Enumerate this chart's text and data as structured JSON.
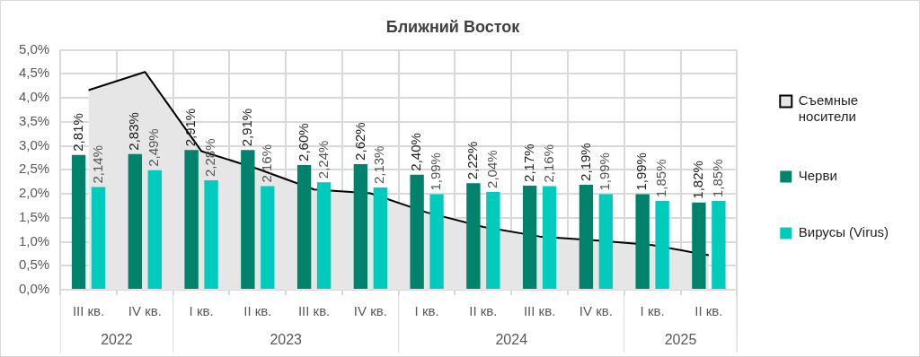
{
  "chart_data": {
    "type": "bar",
    "title": "Ближний Восток",
    "categories": [
      "III кв.",
      "IV кв.",
      "I кв.",
      "II кв.",
      "III кв.",
      "IV кв.",
      "I кв.",
      "II кв.",
      "III кв.",
      "IV кв.",
      "I кв.",
      "II кв."
    ],
    "annotations": [
      "2022",
      "2023",
      "2024",
      "2025"
    ],
    "series": [
      {
        "name": "Съемные носители",
        "type": "area",
        "color": "#e6e6e6",
        "values": [
          4.16,
          4.54,
          2.89,
          2.52,
          2.09,
          2.01,
          1.61,
          1.31,
          1.11,
          1.03,
          0.93,
          0.72
        ]
      },
      {
        "name": "Черви",
        "color": "#00826c",
        "values": [
          2.81,
          2.83,
          2.91,
          2.91,
          2.6,
          2.62,
          2.4,
          2.22,
          2.17,
          2.19,
          1.99,
          1.82
        ],
        "value_labels": [
          "2,81%",
          "2,83%",
          "2,91%",
          "2,91%",
          "2,60%",
          "2,62%",
          "2,40%",
          "2,22%",
          "2,17%",
          "2,19%",
          "1,99%",
          "1,82%"
        ]
      },
      {
        "name": "Вирусы (Virus)",
        "color": "#00cbbd",
        "values": [
          2.14,
          2.49,
          2.28,
          2.16,
          2.24,
          2.13,
          1.99,
          2.04,
          2.16,
          1.99,
          1.85,
          1.85
        ],
        "value_labels": [
          "2,14%",
          "2,49%",
          "2,28%",
          "2,16%",
          "2,24%",
          "2,13%",
          "1,99%",
          "2,04%",
          "2,16%",
          "1,99%",
          "1,85%",
          "1,85%"
        ]
      }
    ],
    "ylim": [
      0,
      5
    ],
    "yticks": [
      {
        "value": 0,
        "label": "0,0%"
      },
      {
        "value": 0.5,
        "label": "0,5%"
      },
      {
        "value": 1,
        "label": "1,0%"
      },
      {
        "value": 1.5,
        "label": "1,5%"
      },
      {
        "value": 2,
        "label": "2,0%"
      },
      {
        "value": 2.5,
        "label": "2,5%"
      },
      {
        "value": 3,
        "label": "3,0%"
      },
      {
        "value": 3.5,
        "label": "3,5%"
      },
      {
        "value": 4,
        "label": "4,0%"
      },
      {
        "value": 4.5,
        "label": "4,5%"
      },
      {
        "value": 5,
        "label": "5,0%"
      }
    ],
    "grid": true,
    "legend": "right"
  }
}
